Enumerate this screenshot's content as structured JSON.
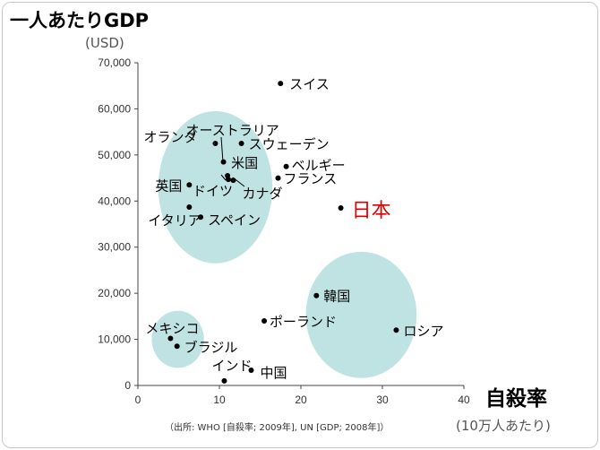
{
  "chart_data": {
    "type": "scatter",
    "title": "一人あたりGDP",
    "ylabel_unit": "(USD)",
    "xlabel": "自殺率",
    "xlabel_unit": "(10万人あたり)",
    "source": "（出所: WHO [自殺率; 2009年], UN [GDP; 2008年]）",
    "xlim": [
      0,
      40
    ],
    "ylim": [
      0,
      70000
    ],
    "x_ticks": [
      {
        "value": 0,
        "label": "0"
      },
      {
        "value": 10,
        "label": "10"
      },
      {
        "value": 20,
        "label": "20"
      },
      {
        "value": 30,
        "label": "30"
      },
      {
        "value": 40,
        "label": "40"
      }
    ],
    "y_ticks": [
      {
        "value": 0,
        "label": "0"
      },
      {
        "value": 10000,
        "label": "10,000"
      },
      {
        "value": 20000,
        "label": "20,000"
      },
      {
        "value": 30000,
        "label": "30,000"
      },
      {
        "value": 40000,
        "label": "40,000"
      },
      {
        "value": 50000,
        "label": "50,000"
      },
      {
        "value": 60000,
        "label": "60,000"
      },
      {
        "value": 70000,
        "label": "70,000"
      }
    ],
    "grid": false,
    "highlight_color": "#e00000",
    "cluster_color": "#bfe3e3",
    "points": [
      {
        "label": "スイス",
        "x": 17.5,
        "y": 65500
      },
      {
        "label": "オーストラリア",
        "x": 10.5,
        "y": 48500
      },
      {
        "label": "オランダ",
        "x": 9.5,
        "y": 52500
      },
      {
        "label": "スウェーデン",
        "x": 12.7,
        "y": 52500
      },
      {
        "label": "ベルギー",
        "x": 18.2,
        "y": 47500
      },
      {
        "label": "米国",
        "x": 11.0,
        "y": 45500
      },
      {
        "label": "カナダ",
        "x": 11.7,
        "y": 44500
      },
      {
        "label": "ドイツ",
        "x": 11.1,
        "y": 44700
      },
      {
        "label": "フランス",
        "x": 17.2,
        "y": 45000
      },
      {
        "label": "英国",
        "x": 6.3,
        "y": 43500
      },
      {
        "label": "イタリア",
        "x": 6.3,
        "y": 38700
      },
      {
        "label": "スペイン",
        "x": 7.7,
        "y": 36500
      },
      {
        "label": "日本",
        "x": 24.9,
        "y": 38500,
        "highlight": true
      },
      {
        "label": "韓国",
        "x": 21.9,
        "y": 19500
      },
      {
        "label": "ポーランド",
        "x": 15.5,
        "y": 14000
      },
      {
        "label": "ロシア",
        "x": 31.7,
        "y": 12000
      },
      {
        "label": "メキシコ",
        "x": 4.0,
        "y": 10200
      },
      {
        "label": "ブラジル",
        "x": 4.8,
        "y": 8500
      },
      {
        "label": "インド",
        "x": 10.6,
        "y": 1000
      },
      {
        "label": "中国",
        "x": 13.9,
        "y": 3300
      }
    ],
    "clusters": [
      {
        "cx": 9.5,
        "cy": 43000,
        "rx": 7.0,
        "ry": 16500
      },
      {
        "cx": 27.4,
        "cy": 15300,
        "rx": 6.8,
        "ry": 13700
      },
      {
        "cx": 4.9,
        "cy": 10000,
        "rx": 3.2,
        "ry": 6200
      }
    ]
  }
}
